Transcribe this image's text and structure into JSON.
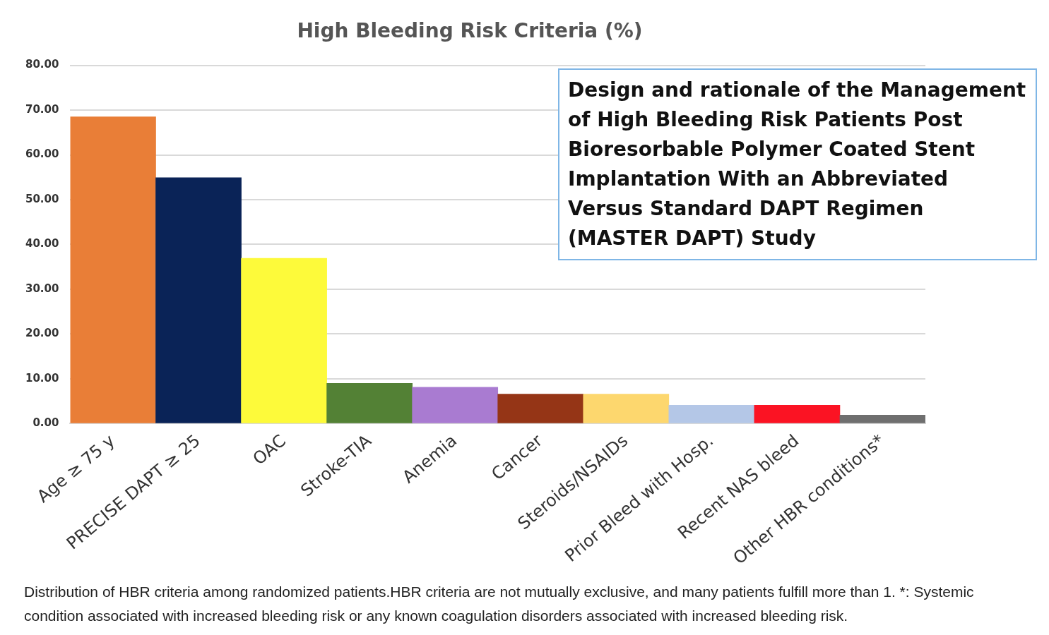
{
  "chart_data": {
    "type": "bar",
    "title": "High Bleeding Risk Criteria (%)",
    "categories": [
      "Age ≥ 75 y",
      "PRECISE DAPT ≥ 25",
      "OAC",
      "Stroke-TIA",
      "Anemia",
      "Cancer",
      "Steroids/NSAIDs",
      "Prior Bleed with Hosp.",
      "Recent NAS bleed",
      "Other HBR conditions*"
    ],
    "values": [
      68.5,
      54.9,
      36.9,
      9.0,
      8.1,
      6.6,
      6.6,
      4.1,
      4.1,
      1.9
    ],
    "colors": [
      "#e97e37",
      "#0a2357",
      "#fdfa3a",
      "#538135",
      "#a97bd1",
      "#953516",
      "#fdd76e",
      "#b4c7e7",
      "#fb1323",
      "#6f6f6f"
    ],
    "ylim": [
      0,
      80
    ],
    "yticks": [
      {
        "value": 0,
        "label": "0.00"
      },
      {
        "value": 10,
        "label": "10.00"
      },
      {
        "value": 20,
        "label": "20.00"
      },
      {
        "value": 30,
        "label": "30.00"
      },
      {
        "value": 40,
        "label": "40.00"
      },
      {
        "value": 50,
        "label": "50.00"
      },
      {
        "value": 60,
        "label": "60.00"
      },
      {
        "value": 70,
        "label": "70.00"
      },
      {
        "value": 80,
        "label": "80.00"
      }
    ],
    "grid": "y",
    "annotations": [
      "Design and rationale of the Management of High Bleeding Risk Patients Post Bioresorbable Polymer Coated Stent Implantation With an Abbreviated Versus Standard DAPT Regimen (MASTER DAPT) Study",
      "Distribution of HBR criteria among randomized patients.HBR criteria are not mutually exclusive, and many patients fulfill more than 1. *: Systemic condition associated with increased bleeding risk or any known coagulation disorders associated with increased bleeding risk."
    ]
  }
}
